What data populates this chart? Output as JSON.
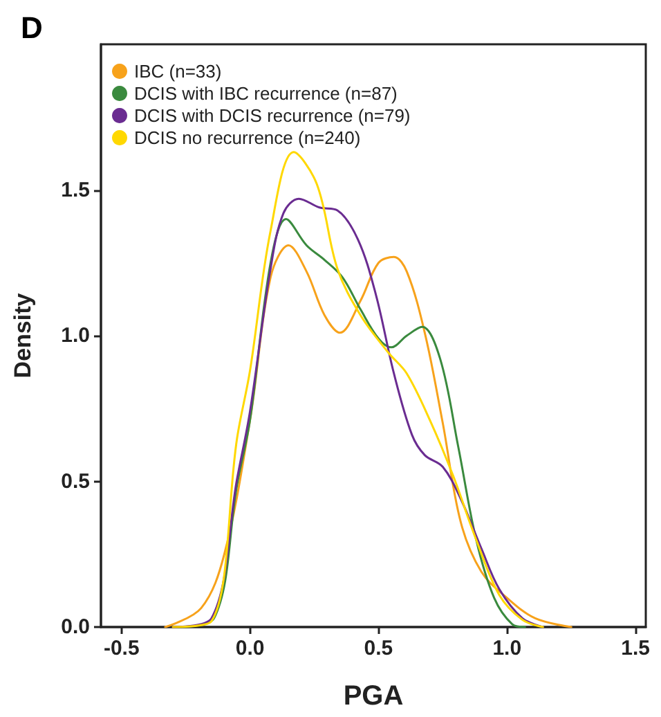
{
  "chart_data": {
    "type": "line",
    "title": "D",
    "xlabel": "PGA",
    "ylabel": "Density",
    "legend": "top left",
    "grid": false,
    "marker": "none",
    "line_style": "solid",
    "xlim": [
      -0.58,
      1.54
    ],
    "ylim": [
      0,
      2.0
    ],
    "xticks": [
      {
        "value": -0.5,
        "label": "-0.5"
      },
      {
        "value": 0,
        "label": "0.0"
      },
      {
        "value": 0.5,
        "label": "0.5"
      },
      {
        "value": 1,
        "label": "1.0"
      },
      {
        "value": 1.5,
        "label": "1.5"
      }
    ],
    "yticks": [
      {
        "value": 0,
        "label": "0.0"
      },
      {
        "value": 0.5,
        "label": "0.5"
      },
      {
        "value": 1,
        "label": "1.0"
      },
      {
        "value": 1.5,
        "label": "1.5"
      }
    ],
    "series": [
      {
        "name": "IBC (n=33)",
        "color": "#f7a21b",
        "x": [
          -0.33,
          -0.19,
          -0.1,
          0,
          0.08,
          0.15,
          0.22,
          0.29,
          0.35,
          0.43,
          0.5,
          0.56,
          0.61,
          0.68,
          0.75,
          0.82,
          0.9,
          1.0,
          1.11,
          1.25
        ],
        "values": [
          0,
          0.065,
          0.25,
          0.71,
          1.2,
          1.31,
          1.22,
          1.07,
          1.01,
          1.12,
          1.25,
          1.27,
          1.22,
          1.01,
          0.7,
          0.36,
          0.19,
          0.1,
          0.03,
          0
        ]
      },
      {
        "name": "DCIS with IBC recurrence (n=87)",
        "color": "#3a8a3e",
        "x": [
          -0.28,
          -0.14,
          -0.05,
          0,
          0.08,
          0.14,
          0.22,
          0.29,
          0.36,
          0.43,
          0.5,
          0.55,
          0.61,
          0.67,
          0.74,
          0.81,
          0.88,
          0.95,
          1.02,
          1.07
        ],
        "values": [
          0,
          0.03,
          0.49,
          0.71,
          1.25,
          1.4,
          1.31,
          1.26,
          1.2,
          1.09,
          0.99,
          0.96,
          1.0,
          1.03,
          0.92,
          0.62,
          0.3,
          0.1,
          0.01,
          0
        ]
      },
      {
        "name": "DCIS with DCIS recurrence (n=79)",
        "color": "#6a2c91",
        "x": [
          -0.3,
          -0.15,
          -0.05,
          0,
          0.08,
          0.13,
          0.19,
          0.27,
          0.34,
          0.42,
          0.49,
          0.56,
          0.63,
          0.68,
          0.75,
          0.82,
          0.9,
          0.97,
          1.06,
          1.14
        ],
        "values": [
          0,
          0.03,
          0.51,
          0.74,
          1.23,
          1.42,
          1.47,
          1.44,
          1.43,
          1.33,
          1.14,
          0.87,
          0.66,
          0.59,
          0.55,
          0.44,
          0.27,
          0.13,
          0.03,
          0
        ]
      },
      {
        "name": "DCIS no recurrence (n=240)",
        "color": "#ffd800",
        "x": [
          -0.3,
          -0.15,
          -0.05,
          0,
          0.08,
          0.17,
          0.26,
          0.34,
          0.43,
          0.54,
          0.61,
          0.7,
          0.79,
          0.88,
          0.97,
          1.06,
          1.14
        ],
        "values": [
          0,
          0.02,
          0.65,
          0.88,
          1.36,
          1.63,
          1.52,
          1.23,
          1.07,
          0.94,
          0.87,
          0.71,
          0.52,
          0.3,
          0.11,
          0.025,
          0
        ]
      }
    ]
  }
}
